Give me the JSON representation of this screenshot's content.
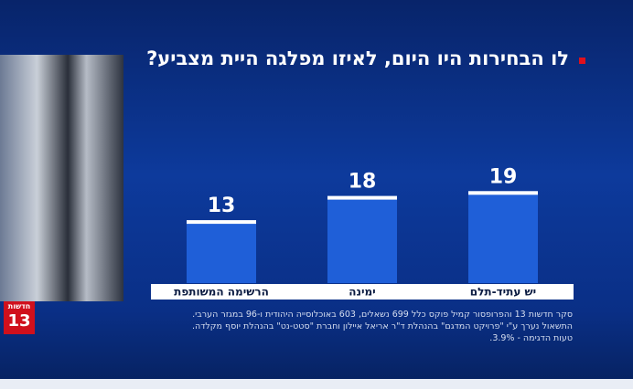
{
  "chart_data": {
    "type": "bar",
    "title": "לו הבחירות היו היום, לאיזו מפלגה היית מצביע?",
    "categories": [
      "יש עתיד-תלם",
      "ימינה",
      "הרשימה המשותפת"
    ],
    "values": [
      19,
      18,
      13
    ],
    "color": "#1f5fd8",
    "notes": [
      "סקר חדשות 13 והפרופסור קמיל פוקס כלל 699 נשאלים, 603 באוכלוסייה היהודית ו-96 במגזר הערבי.",
      "התשאול נערך ע\"י \"פרויקט המדגם\" בהנהלת ד\"ר אריאל איילון וחברת \"סטט-נט\" בהנהלת יוסף מקלדה.",
      "טעות הדגימה - 3.9%."
    ]
  },
  "logo": {
    "line1": "חדשות",
    "line2": "13"
  }
}
